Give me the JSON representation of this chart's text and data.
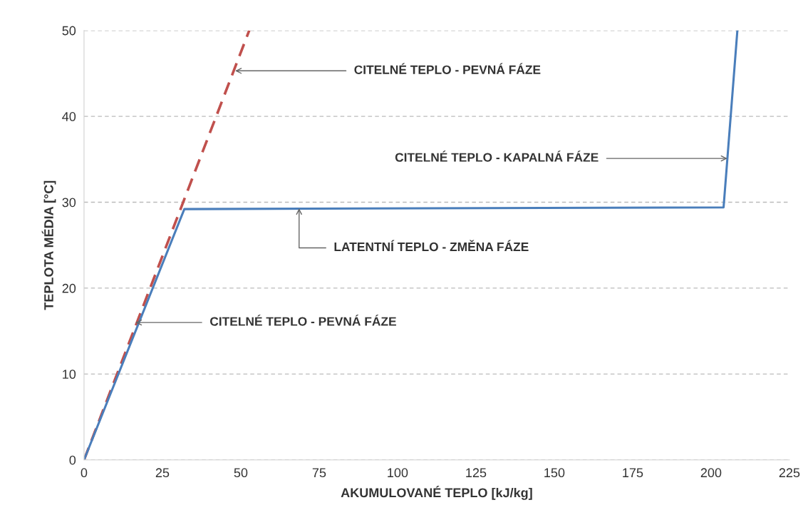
{
  "chart_data": {
    "type": "line",
    "xlabel": "AKUMULOVANÉ TEPLO [kJ/kg]",
    "ylabel": "TEPLOTA MÉDIA [°C]",
    "series": [
      {
        "color": "#c0504d",
        "line_style": "dashed",
        "x": [
          0,
          52.7
        ],
        "values": [
          0,
          50
        ]
      },
      {
        "color": "#4a7ebb",
        "line_style": "solid",
        "x": [
          0,
          32,
          204,
          208.4
        ],
        "values": [
          0,
          29.2,
          29.4,
          50
        ]
      }
    ],
    "xlim": [
      0,
      225
    ],
    "xticks": [
      0,
      25,
      50,
      75,
      100,
      125,
      150,
      175,
      200,
      225
    ],
    "ylim": [
      0,
      50
    ],
    "yticks": [
      0,
      10,
      20,
      30,
      40,
      50
    ],
    "grid": "y",
    "legend": false,
    "annotations": [
      {
        "text": "CITELNÉ TEPLO - PEVNÁ FÁZE",
        "x": 48.2,
        "y": 45.3
      },
      {
        "text": "CITELNÉ TEPLO - KAPALNÁ FÁZE",
        "x": 205.2,
        "y": 35.1
      },
      {
        "text": "LATENTNÍ TEPLO - ZMĚNA FÁZE",
        "x": 68.6,
        "y": 29.3
      },
      {
        "text": "CITELNÉ TEPLO - PEVNÁ FÁZE",
        "x": 16.4,
        "y": 16
      }
    ]
  }
}
